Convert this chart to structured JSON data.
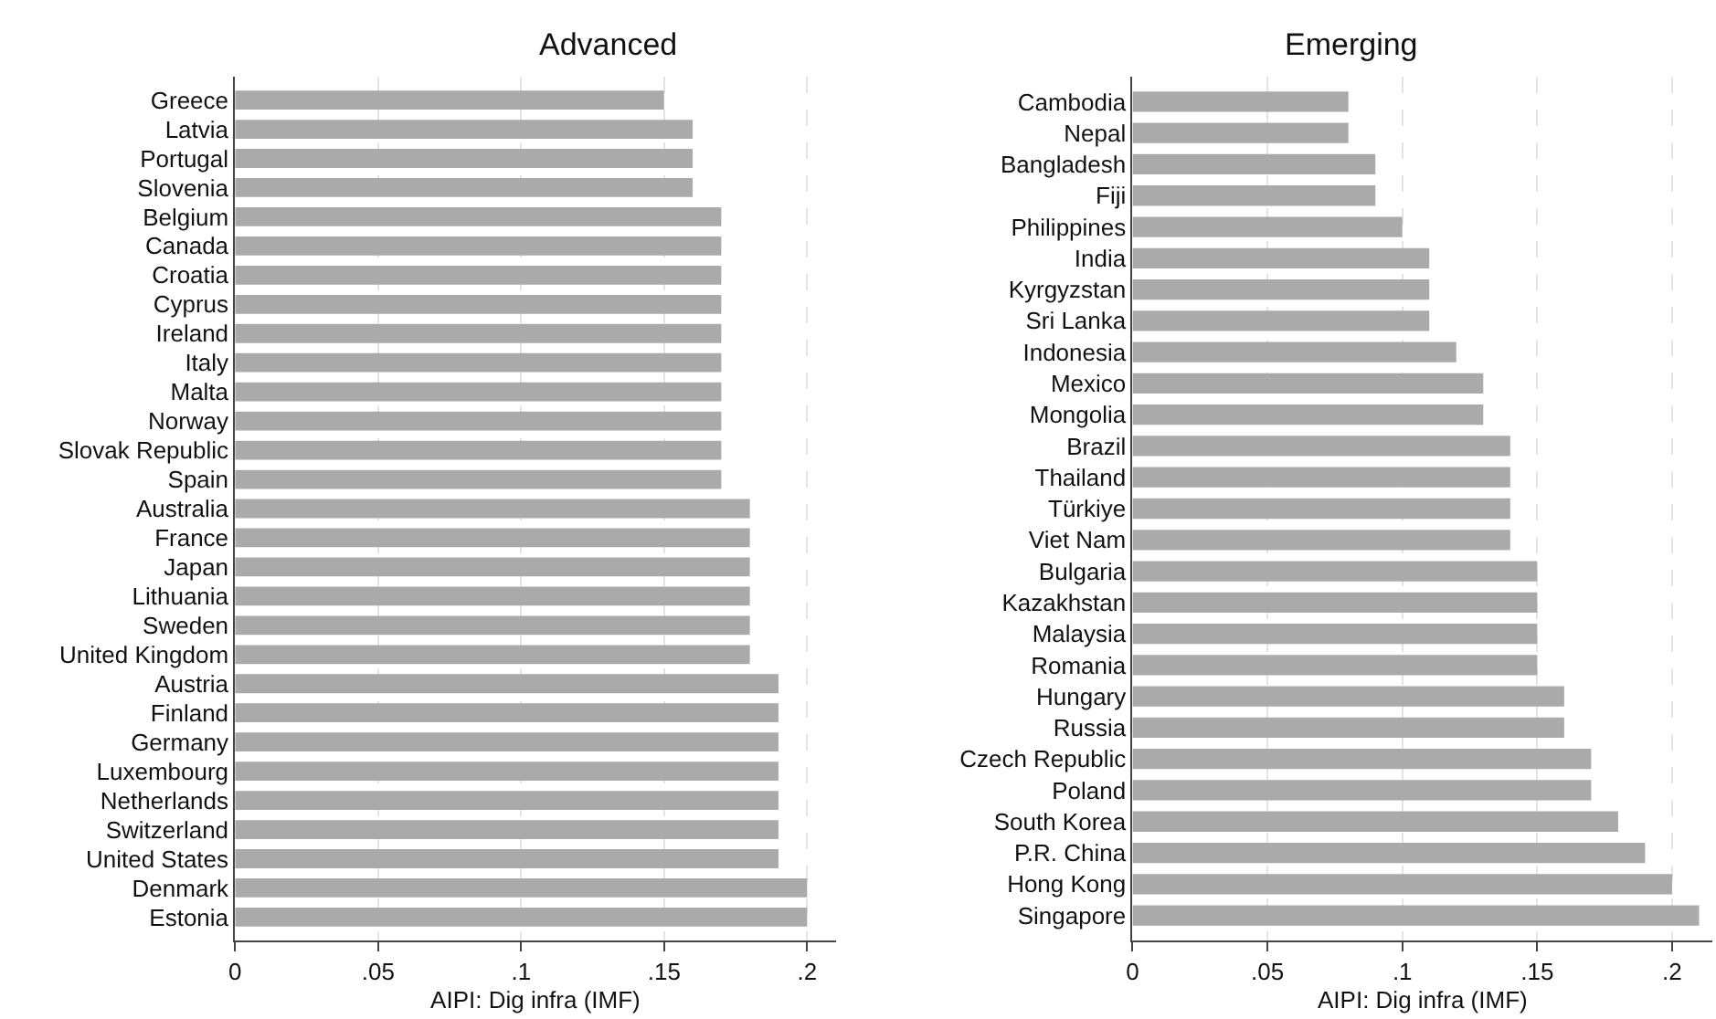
{
  "chart_data": [
    {
      "type": "bar",
      "orientation": "horizontal",
      "title": "Advanced",
      "xlabel": "AIPI: Dig infra (IMF)",
      "color": "#aaaaaa",
      "grid": "x",
      "categories": [
        "Greece",
        "Latvia",
        "Portugal",
        "Slovenia",
        "Belgium",
        "Canada",
        "Croatia",
        "Cyprus",
        "Ireland",
        "Italy",
        "Malta",
        "Norway",
        "Slovak Republic",
        "Spain",
        "Australia",
        "France",
        "Japan",
        "Lithuania",
        "Sweden",
        "United Kingdom",
        "Austria",
        "Finland",
        "Germany",
        "Luxembourg",
        "Netherlands",
        "Switzerland",
        "United States",
        "Denmark",
        "Estonia"
      ],
      "values": [
        0.15,
        0.16,
        0.16,
        0.16,
        0.17,
        0.17,
        0.17,
        0.17,
        0.17,
        0.17,
        0.17,
        0.17,
        0.17,
        0.17,
        0.18,
        0.18,
        0.18,
        0.18,
        0.18,
        0.18,
        0.19,
        0.19,
        0.19,
        0.19,
        0.19,
        0.19,
        0.19,
        0.2,
        0.2
      ],
      "xlim": [
        0,
        0.21
      ],
      "xticks": [
        0,
        {
          "value": 0.05,
          "label": ".05"
        },
        {
          "value": 0.1,
          "label": ".1"
        },
        {
          "value": 0.15,
          "label": ".15"
        },
        {
          "value": 0.2,
          "label": ".2"
        }
      ]
    },
    {
      "type": "bar",
      "orientation": "horizontal",
      "title": "Emerging",
      "xlabel": "AIPI: Dig infra (IMF)",
      "color": "#aaaaaa",
      "grid": "x",
      "categories": [
        "Cambodia",
        "Nepal",
        "Bangladesh",
        "Fiji",
        "Philippines",
        "India",
        "Kyrgyzstan",
        "Sri Lanka",
        "Indonesia",
        "Mexico",
        "Mongolia",
        "Brazil",
        "Thailand",
        "Türkiye",
        "Viet Nam",
        "Bulgaria",
        "Kazakhstan",
        "Malaysia",
        "Romania",
        "Hungary",
        "Russia",
        "Czech Republic",
        "Poland",
        "South Korea",
        "P.R. China",
        "Hong Kong",
        "Singapore"
      ],
      "values": [
        0.08,
        0.08,
        0.09,
        0.09,
        0.1,
        0.11,
        0.11,
        0.11,
        0.12,
        0.13,
        0.13,
        0.14,
        0.14,
        0.14,
        0.14,
        0.15,
        0.15,
        0.15,
        0.15,
        0.16,
        0.16,
        0.17,
        0.17,
        0.18,
        0.19,
        0.2,
        0.21
      ],
      "xlim": [
        0,
        0.215
      ],
      "xticks": [
        0,
        {
          "value": 0.05,
          "label": ".05"
        },
        {
          "value": 0.1,
          "label": ".1"
        },
        {
          "value": 0.15,
          "label": ".15"
        },
        {
          "value": 0.2,
          "label": ".2"
        }
      ]
    }
  ]
}
